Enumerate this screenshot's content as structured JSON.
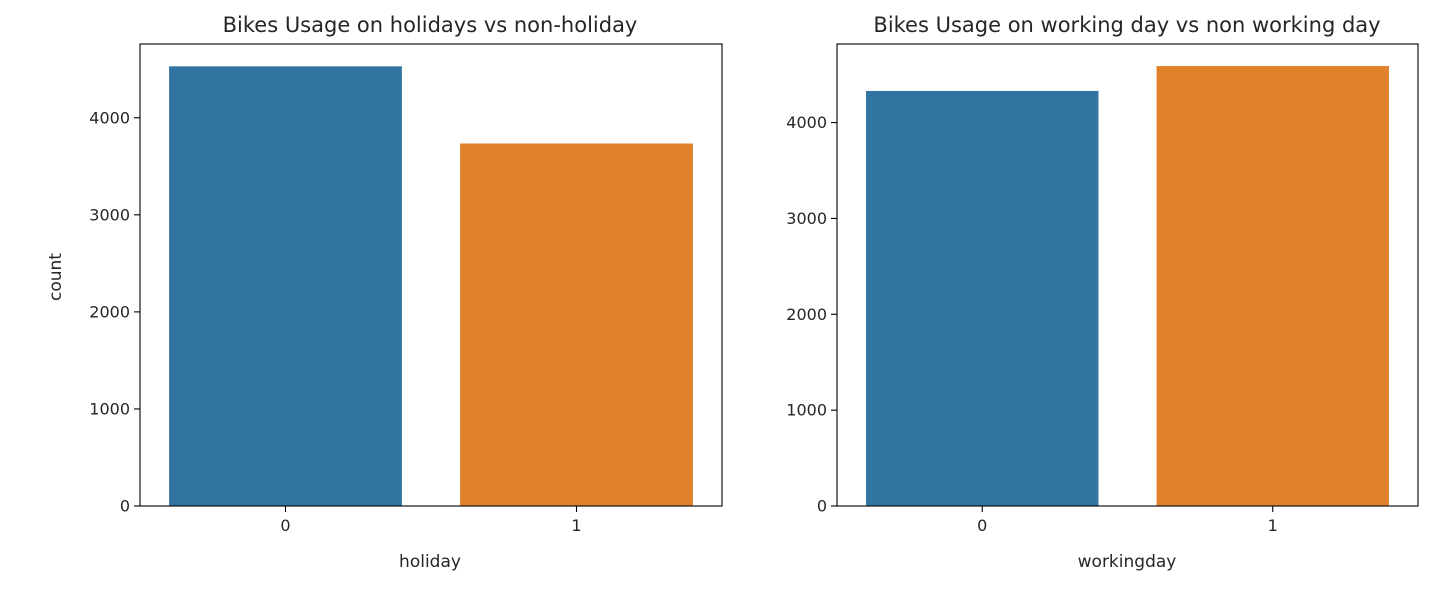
{
  "chart_data": [
    {
      "type": "bar",
      "title": "Bikes Usage on holidays vs non-holiday",
      "xlabel": "holiday",
      "ylabel": "count",
      "categories": [
        "0",
        "1"
      ],
      "values": [
        4530,
        3735
      ],
      "colors": [
        "#3274a1",
        "#e1812c"
      ],
      "ylim": [
        0,
        4760
      ],
      "yticks": [
        0,
        1000,
        2000,
        3000,
        4000
      ],
      "grid": false
    },
    {
      "type": "bar",
      "title": "Bikes Usage on working day vs non working day",
      "xlabel": "workingday",
      "ylabel": "",
      "categories": [
        "0",
        "1"
      ],
      "values": [
        4330,
        4590
      ],
      "colors": [
        "#3274a1",
        "#e1812c"
      ],
      "ylim": [
        0,
        4820
      ],
      "yticks": [
        0,
        1000,
        2000,
        3000,
        4000
      ],
      "grid": false
    }
  ]
}
